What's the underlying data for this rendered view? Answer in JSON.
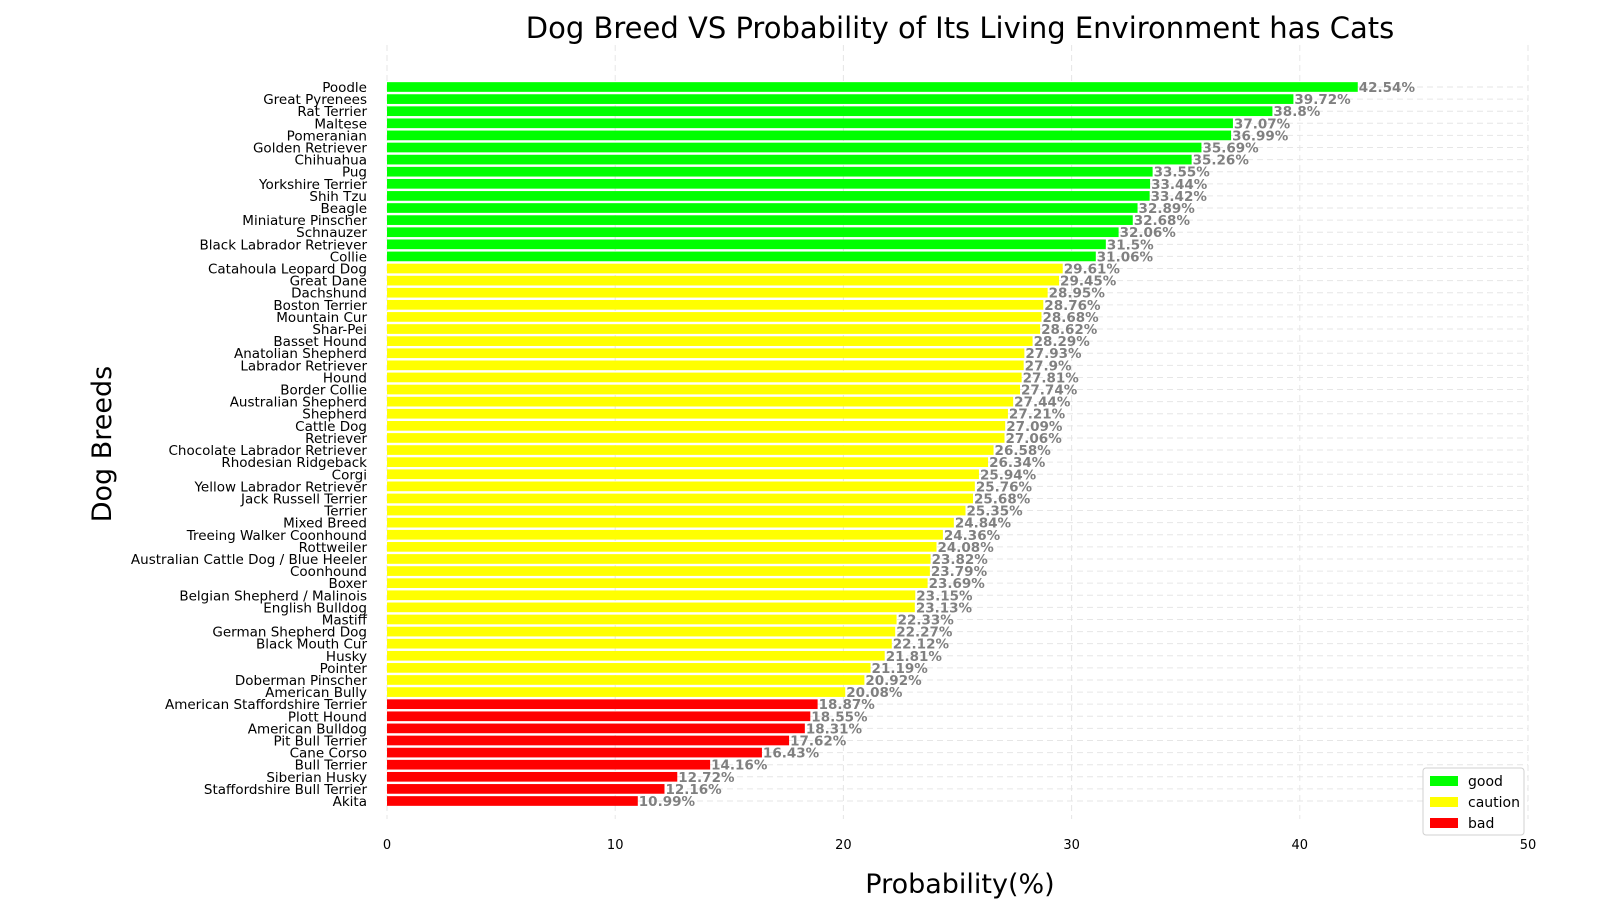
{
  "chart_data": {
    "type": "bar",
    "orientation": "horizontal",
    "title": "Dog Breed VS Probability of Its Living Environment has Cats",
    "xlabel": "Probability(%)",
    "ylabel": "Dog Breeds",
    "xlim": [
      0,
      50
    ],
    "xticks": [
      0,
      10,
      20,
      30,
      40,
      50
    ],
    "grid": true,
    "legend_position": "bottom-right",
    "value_suffix": "%",
    "legend": [
      {
        "key": "good",
        "label": "good",
        "color": "#00ff00"
      },
      {
        "key": "caution",
        "label": "caution",
        "color": "#ffff00"
      },
      {
        "key": "bad",
        "label": "bad",
        "color": "#ff0000"
      }
    ],
    "bars": [
      {
        "category": "Poodle",
        "value": 42.54,
        "group": "good"
      },
      {
        "category": "Great Pyrenees",
        "value": 39.72,
        "group": "good"
      },
      {
        "category": "Rat Terrier",
        "value": 38.8,
        "group": "good"
      },
      {
        "category": "Maltese",
        "value": 37.07,
        "group": "good"
      },
      {
        "category": "Pomeranian",
        "value": 36.99,
        "group": "good"
      },
      {
        "category": "Golden Retriever",
        "value": 35.69,
        "group": "good"
      },
      {
        "category": "Chihuahua",
        "value": 35.26,
        "group": "good"
      },
      {
        "category": "Pug",
        "value": 33.55,
        "group": "good"
      },
      {
        "category": "Yorkshire Terrier",
        "value": 33.44,
        "group": "good"
      },
      {
        "category": "Shih Tzu",
        "value": 33.42,
        "group": "good"
      },
      {
        "category": "Beagle",
        "value": 32.89,
        "group": "good"
      },
      {
        "category": "Miniature Pinscher",
        "value": 32.68,
        "group": "good"
      },
      {
        "category": "Schnauzer",
        "value": 32.06,
        "group": "good"
      },
      {
        "category": "Black Labrador Retriever",
        "value": 31.5,
        "group": "good"
      },
      {
        "category": "Collie",
        "value": 31.06,
        "group": "good"
      },
      {
        "category": "Catahoula Leopard Dog",
        "value": 29.61,
        "group": "caution"
      },
      {
        "category": "Great Dane",
        "value": 29.45,
        "group": "caution"
      },
      {
        "category": "Dachshund",
        "value": 28.95,
        "group": "caution"
      },
      {
        "category": "Boston Terrier",
        "value": 28.76,
        "group": "caution"
      },
      {
        "category": "Mountain Cur",
        "value": 28.68,
        "group": "caution"
      },
      {
        "category": "Shar-Pei",
        "value": 28.62,
        "group": "caution"
      },
      {
        "category": "Basset Hound",
        "value": 28.29,
        "group": "caution"
      },
      {
        "category": "Anatolian Shepherd",
        "value": 27.93,
        "group": "caution"
      },
      {
        "category": "Labrador Retriever",
        "value": 27.9,
        "group": "caution"
      },
      {
        "category": "Hound",
        "value": 27.81,
        "group": "caution"
      },
      {
        "category": "Border Collie",
        "value": 27.74,
        "group": "caution"
      },
      {
        "category": "Australian Shepherd",
        "value": 27.44,
        "group": "caution"
      },
      {
        "category": "Shepherd",
        "value": 27.21,
        "group": "caution"
      },
      {
        "category": "Cattle Dog",
        "value": 27.09,
        "group": "caution"
      },
      {
        "category": "Retriever",
        "value": 27.06,
        "group": "caution"
      },
      {
        "category": "Chocolate Labrador Retriever",
        "value": 26.58,
        "group": "caution"
      },
      {
        "category": "Rhodesian Ridgeback",
        "value": 26.34,
        "group": "caution"
      },
      {
        "category": "Corgi",
        "value": 25.94,
        "group": "caution"
      },
      {
        "category": "Yellow Labrador Retriever",
        "value": 25.76,
        "group": "caution"
      },
      {
        "category": "Jack Russell Terrier",
        "value": 25.68,
        "group": "caution"
      },
      {
        "category": "Terrier",
        "value": 25.35,
        "group": "caution"
      },
      {
        "category": "Mixed Breed",
        "value": 24.84,
        "group": "caution"
      },
      {
        "category": "Treeing Walker Coonhound",
        "value": 24.36,
        "group": "caution"
      },
      {
        "category": "Rottweiler",
        "value": 24.08,
        "group": "caution"
      },
      {
        "category": "Australian Cattle Dog / Blue Heeler",
        "value": 23.82,
        "group": "caution"
      },
      {
        "category": "Coonhound",
        "value": 23.79,
        "group": "caution"
      },
      {
        "category": "Boxer",
        "value": 23.69,
        "group": "caution"
      },
      {
        "category": "Belgian Shepherd / Malinois",
        "value": 23.15,
        "group": "caution"
      },
      {
        "category": "English Bulldog",
        "value": 23.13,
        "group": "caution"
      },
      {
        "category": "Mastiff",
        "value": 22.33,
        "group": "caution"
      },
      {
        "category": "German Shepherd Dog",
        "value": 22.27,
        "group": "caution"
      },
      {
        "category": "Black Mouth Cur",
        "value": 22.12,
        "group": "caution"
      },
      {
        "category": "Husky",
        "value": 21.81,
        "group": "caution"
      },
      {
        "category": "Pointer",
        "value": 21.19,
        "group": "caution"
      },
      {
        "category": "Doberman Pinscher",
        "value": 20.92,
        "group": "caution"
      },
      {
        "category": "American Bully",
        "value": 20.08,
        "group": "caution"
      },
      {
        "category": "American Staffordshire Terrier",
        "value": 18.87,
        "group": "bad"
      },
      {
        "category": "Plott Hound",
        "value": 18.55,
        "group": "bad"
      },
      {
        "category": "American Bulldog",
        "value": 18.31,
        "group": "bad"
      },
      {
        "category": "Pit Bull Terrier",
        "value": 17.62,
        "group": "bad"
      },
      {
        "category": "Cane Corso",
        "value": 16.43,
        "group": "bad"
      },
      {
        "category": "Bull Terrier",
        "value": 14.16,
        "group": "bad"
      },
      {
        "category": "Siberian Husky",
        "value": 12.72,
        "group": "bad"
      },
      {
        "category": "Staffordshire Bull Terrier",
        "value": 12.16,
        "group": "bad"
      },
      {
        "category": "Akita",
        "value": 10.99,
        "group": "bad"
      }
    ]
  }
}
